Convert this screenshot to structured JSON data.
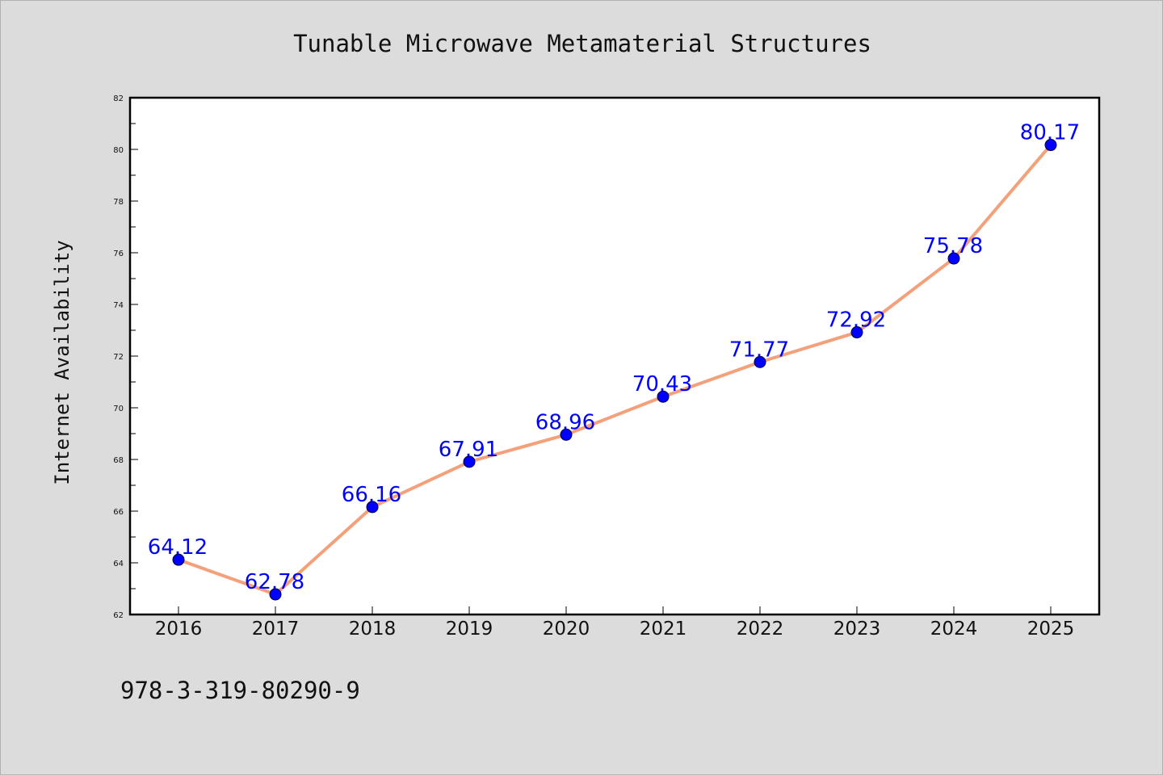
{
  "chart_data": {
    "type": "line",
    "title": "Tunable Microwave Metamaterial Structures",
    "xlabel": "",
    "ylabel": "Internet Availability",
    "categories": [
      "2016",
      "2017",
      "2018",
      "2019",
      "2020",
      "2021",
      "2022",
      "2023",
      "2024",
      "2025"
    ],
    "series": [
      {
        "values": [
          64.12,
          62.78,
          66.16,
          67.91,
          68.96,
          70.43,
          71.77,
          72.92,
          75.78,
          80.17
        ]
      }
    ],
    "data_labels": [
      "64.12",
      "62.78",
      "66.16",
      "67.91",
      "68.96",
      "70.43",
      "71.77",
      "72.92",
      "75.78",
      "80.17"
    ],
    "ylim": [
      62,
      82
    ],
    "yticks": [
      "62",
      "64",
      "66",
      "68",
      "70",
      "72",
      "74",
      "76",
      "78",
      "80",
      "82"
    ],
    "grid": false,
    "line_color": "#f4a07a",
    "marker_color": "#0000ff",
    "label_color": "#0000ff"
  },
  "footer_text": "978-3-319-80290-9"
}
